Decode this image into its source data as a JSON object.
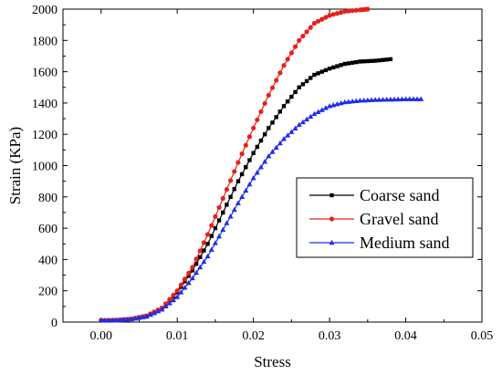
{
  "chart_data": {
    "type": "line",
    "title": "",
    "xlabel": "Stress",
    "ylabel": "Strain (KPa)",
    "xlim": [
      -0.005,
      0.05
    ],
    "ylim": [
      0,
      2000
    ],
    "xticks": [
      "0.00",
      "0.01",
      "0.02",
      "0.03",
      "0.04",
      "0.05"
    ],
    "yticks": [
      "0",
      "200",
      "400",
      "600",
      "800",
      "1000",
      "1200",
      "1400",
      "1600",
      "1800",
      "2000"
    ],
    "grid": false,
    "legend_position": "lower-right",
    "series": [
      {
        "name": "Coarse sand",
        "color": "#000000",
        "marker": "square",
        "x": [
          0.0,
          0.002,
          0.004,
          0.006,
          0.008,
          0.01,
          0.012,
          0.014,
          0.016,
          0.018,
          0.02,
          0.022,
          0.024,
          0.026,
          0.028,
          0.03,
          0.032,
          0.034,
          0.036,
          0.038
        ],
        "y": [
          10,
          12,
          20,
          40,
          90,
          190,
          330,
          500,
          700,
          900,
          1080,
          1240,
          1380,
          1500,
          1580,
          1620,
          1650,
          1665,
          1670,
          1680
        ]
      },
      {
        "name": "Gravel sand",
        "color": "#e8201c",
        "marker": "circle",
        "x": [
          0.0,
          0.002,
          0.004,
          0.006,
          0.008,
          0.01,
          0.012,
          0.014,
          0.016,
          0.018,
          0.02,
          0.022,
          0.024,
          0.026,
          0.028,
          0.03,
          0.032,
          0.034,
          0.035
        ],
        "y": [
          10,
          12,
          20,
          40,
          90,
          200,
          350,
          560,
          790,
          1020,
          1240,
          1450,
          1640,
          1800,
          1910,
          1960,
          1985,
          1995,
          2000
        ]
      },
      {
        "name": "Medium sand",
        "color": "#1f2ee8",
        "marker": "triangle",
        "x": [
          0.0,
          0.002,
          0.004,
          0.006,
          0.008,
          0.01,
          0.012,
          0.014,
          0.016,
          0.018,
          0.02,
          0.022,
          0.024,
          0.026,
          0.028,
          0.03,
          0.032,
          0.034,
          0.036,
          0.038,
          0.04,
          0.042
        ],
        "y": [
          10,
          12,
          18,
          35,
          80,
          160,
          280,
          420,
          590,
          760,
          920,
          1060,
          1170,
          1260,
          1330,
          1380,
          1405,
          1415,
          1420,
          1422,
          1425,
          1425
        ]
      }
    ]
  }
}
